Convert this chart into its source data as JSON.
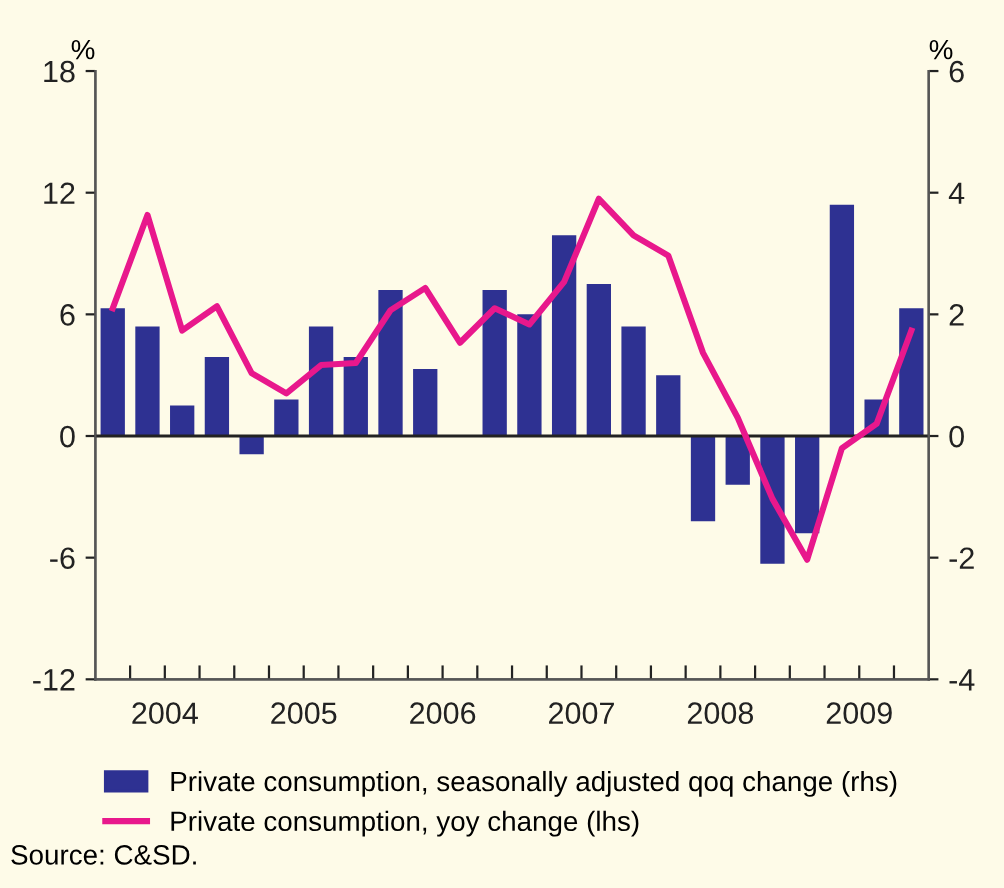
{
  "chart_data": {
    "type": "bar",
    "x": [
      2004.125,
      2004.375,
      2004.625,
      2004.875,
      2005.125,
      2005.375,
      2005.625,
      2005.875,
      2006.125,
      2006.375,
      2006.625,
      2006.875,
      2007.125,
      2007.375,
      2007.625,
      2007.875,
      2008.125,
      2008.375,
      2008.625,
      2008.875,
      2009.125,
      2009.375,
      2009.625,
      2009.875
    ],
    "series": [
      {
        "name": "Private consumption, seasonally adjusted qoq change (rhs)",
        "axis": "y2",
        "color": "#2e3192",
        "values": [
          2.1,
          1.8,
          0.5,
          1.3,
          -0.3,
          0.6,
          1.8,
          1.3,
          2.4,
          1.1,
          0,
          2.4,
          2.0,
          3.3,
          2.5,
          1.8,
          1.0,
          -1.4,
          -0.8,
          -2.1,
          -1.6,
          3.8,
          0.6,
          2.1
        ]
      },
      {
        "name": "Private consumption, yoy change (lhs)",
        "type": "line",
        "color": "#e8188c",
        "values": [
          6.3,
          10.9,
          5.2,
          6.4,
          3.1,
          2.1,
          3.5,
          3.6,
          6.2,
          7.3,
          4.6,
          6.3,
          5.5,
          7.6,
          11.7,
          9.9,
          8.9,
          4.1,
          0.9,
          -3.1,
          -6.1,
          -0.6,
          0.6,
          5.2
        ]
      }
    ],
    "xlim": [
      2004,
      2010
    ],
    "xticks": [
      {
        "value": 2004.25,
        "label": null
      },
      {
        "value": 2004.5,
        "label": "2004"
      },
      {
        "value": 2004.75,
        "label": null
      },
      {
        "value": 2005,
        "label": null
      },
      {
        "value": 2005.25,
        "label": null
      },
      {
        "value": 2005.5,
        "label": "2005"
      },
      {
        "value": 2005.75,
        "label": null
      },
      {
        "value": 2006,
        "label": null
      },
      {
        "value": 2006.25,
        "label": null
      },
      {
        "value": 2006.5,
        "label": "2006"
      },
      {
        "value": 2006.75,
        "label": null
      },
      {
        "value": 2007,
        "label": null
      },
      {
        "value": 2007.25,
        "label": null
      },
      {
        "value": 2007.5,
        "label": "2007"
      },
      {
        "value": 2007.75,
        "label": null
      },
      {
        "value": 2008,
        "label": null
      },
      {
        "value": 2008.25,
        "label": null
      },
      {
        "value": 2008.5,
        "label": "2008"
      },
      {
        "value": 2008.75,
        "label": null
      },
      {
        "value": 2009,
        "label": null
      },
      {
        "value": 2009.25,
        "label": null
      },
      {
        "value": 2009.5,
        "label": "2009"
      },
      {
        "value": 2009.75,
        "label": null
      }
    ],
    "ylim": [
      -12,
      18
    ],
    "yticks": [
      -12,
      -6,
      0,
      6,
      12,
      18
    ],
    "y2lim": [
      -4,
      6
    ],
    "y2ticks": [
      -4,
      -2,
      0,
      2,
      4,
      6
    ],
    "ylabel": "%",
    "y2label": "%",
    "legend": "bottom",
    "ref_lines": [
      {
        "axis": "y",
        "value": 0,
        "color": "#222222"
      }
    ],
    "annotations": [
      "Source: C&SD."
    ]
  }
}
